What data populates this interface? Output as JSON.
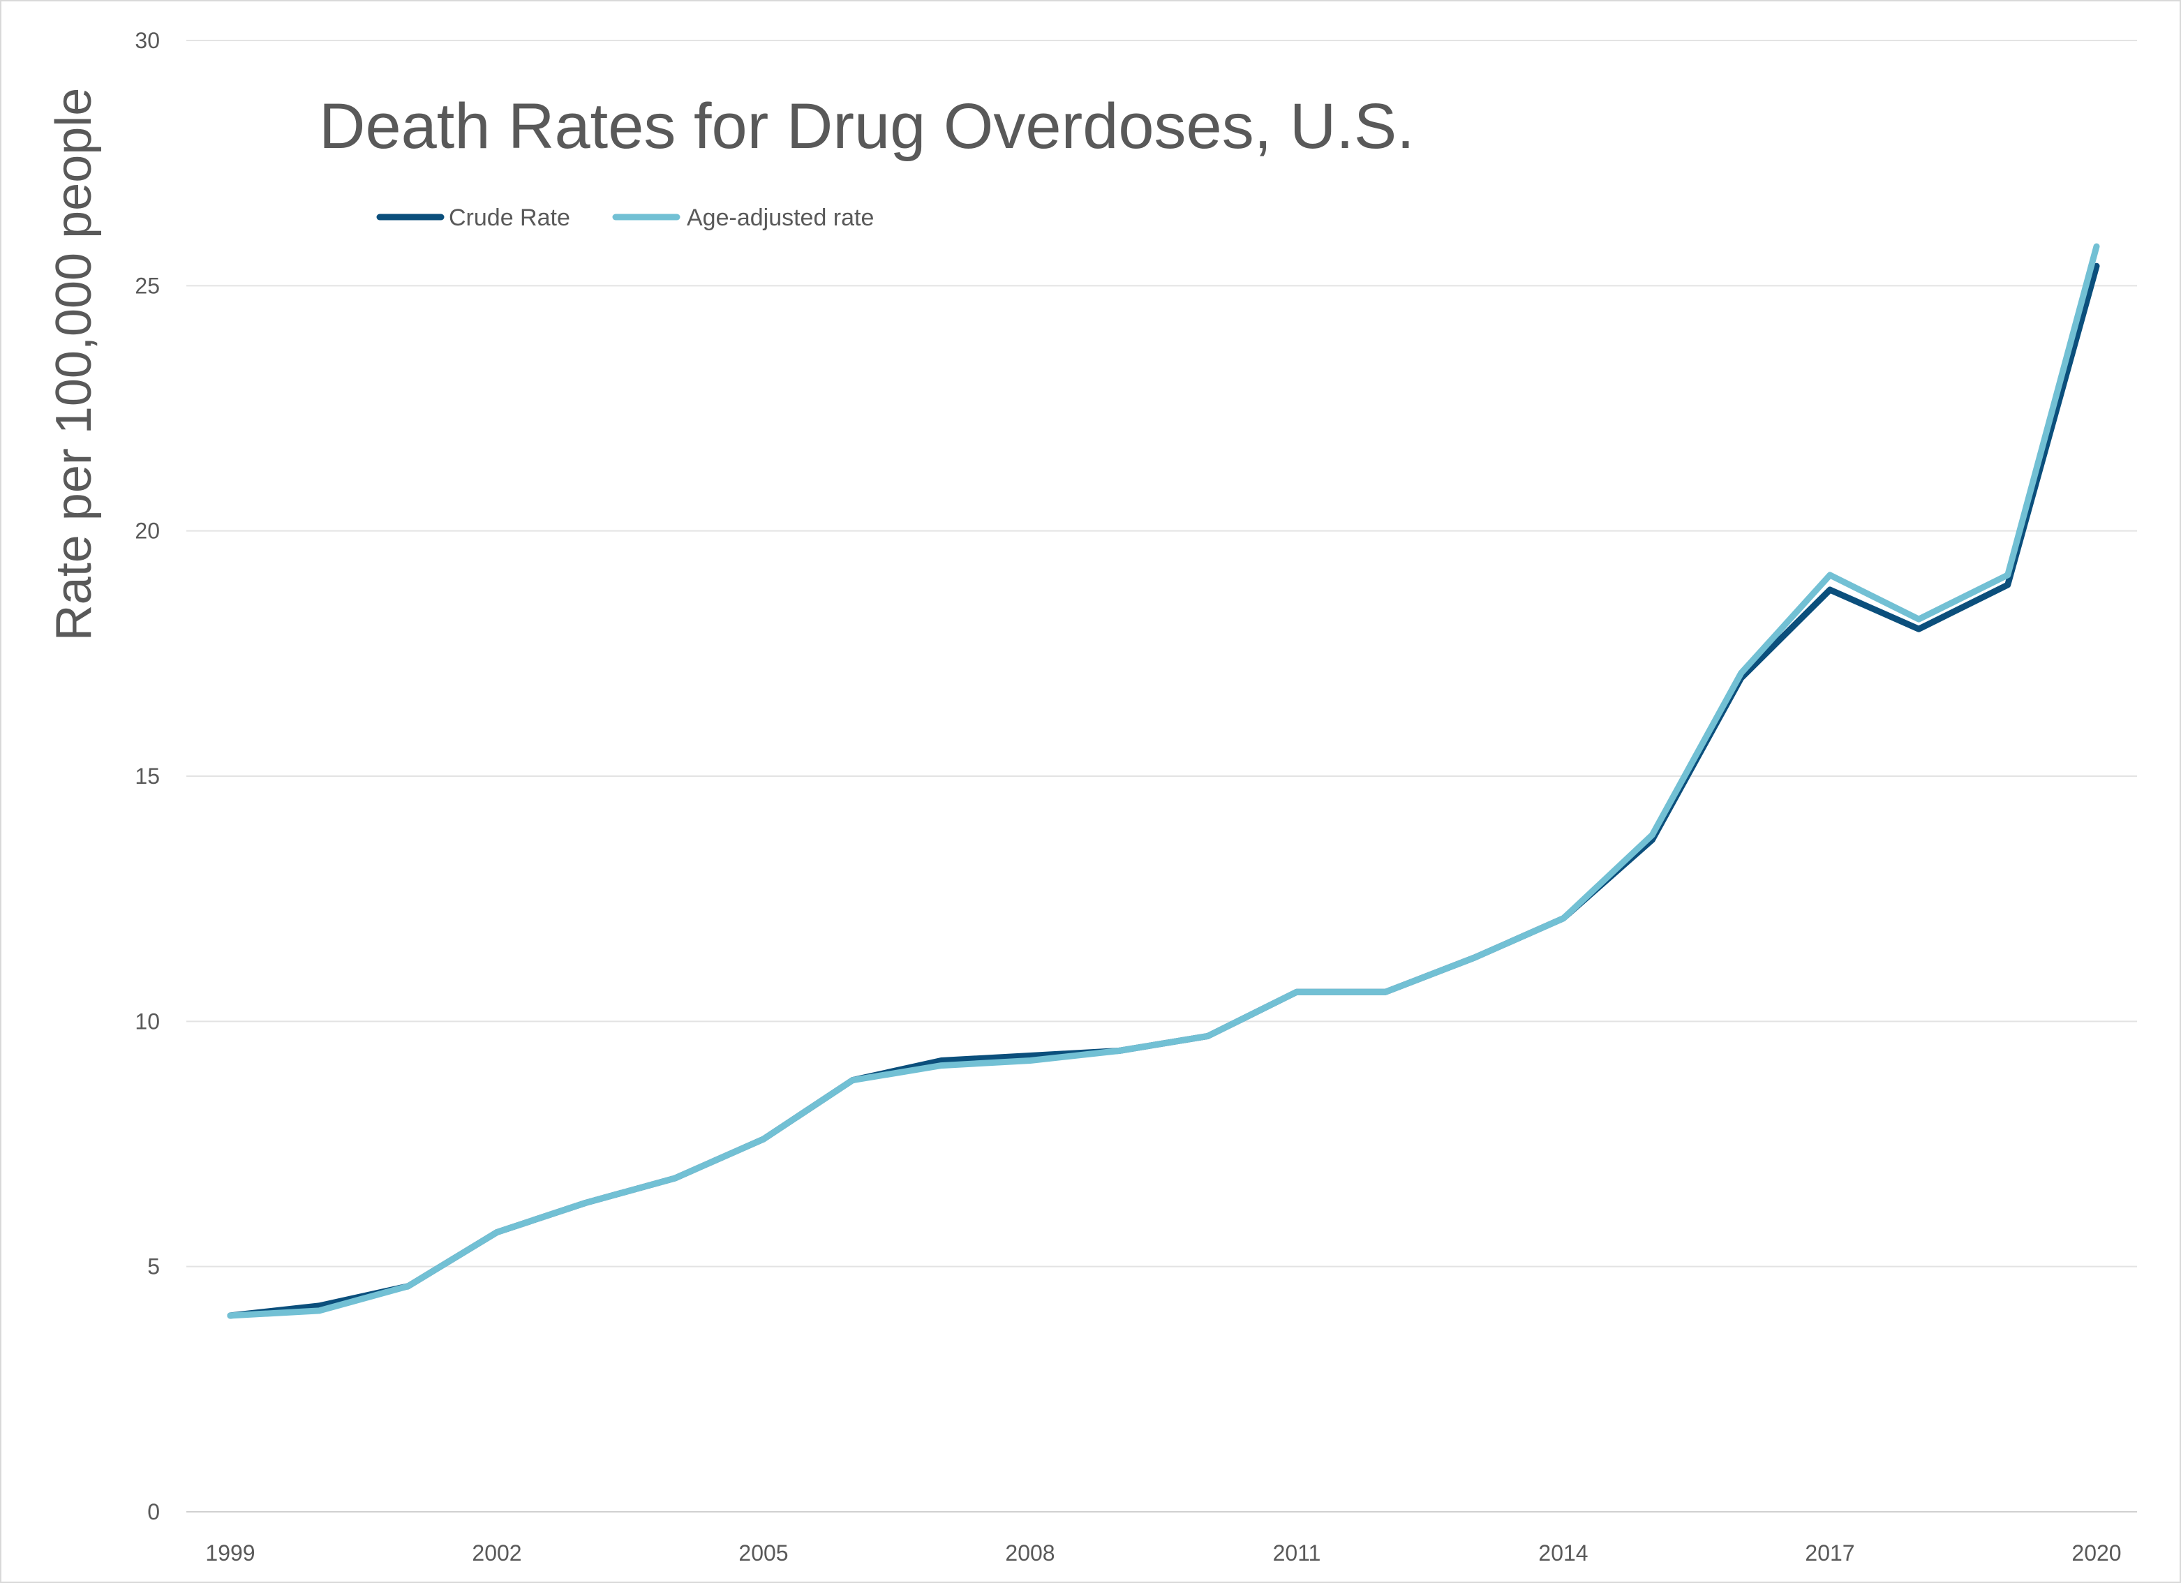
{
  "chart_data": {
    "type": "line",
    "title": "Death Rates for Drug Overdoses, U.S.",
    "xlabel": "",
    "ylabel": "Rate per 100,000 people",
    "x": [
      1999,
      2000,
      2001,
      2002,
      2003,
      2004,
      2005,
      2006,
      2007,
      2008,
      2009,
      2010,
      2011,
      2012,
      2013,
      2014,
      2015,
      2016,
      2017,
      2018,
      2019,
      2020
    ],
    "x_tick_labels": [
      "1999",
      "2002",
      "2005",
      "2008",
      "2011",
      "2014",
      "2017",
      "2020"
    ],
    "y_tick_labels": [
      "0",
      "5",
      "10",
      "15",
      "20",
      "25",
      "30"
    ],
    "ylim": [
      0,
      30
    ],
    "xlim": [
      1999,
      2020
    ],
    "grid": "horizontal",
    "legend_position": "top-left",
    "series": [
      {
        "name": "Crude Rate",
        "color": "#0b4f7c",
        "values": [
          4.0,
          4.2,
          4.6,
          5.7,
          6.3,
          6.8,
          7.6,
          8.8,
          9.2,
          9.3,
          9.4,
          9.7,
          10.6,
          10.6,
          11.3,
          12.1,
          13.7,
          17.0,
          18.8,
          18.0,
          18.9,
          25.4
        ]
      },
      {
        "name": "Age-adjusted rate",
        "color": "#72c0d4",
        "values": [
          4.0,
          4.1,
          4.6,
          5.7,
          6.3,
          6.8,
          7.6,
          8.8,
          9.1,
          9.2,
          9.4,
          9.7,
          10.6,
          10.6,
          11.3,
          12.1,
          13.8,
          17.1,
          19.1,
          18.2,
          19.1,
          25.8
        ]
      }
    ]
  }
}
